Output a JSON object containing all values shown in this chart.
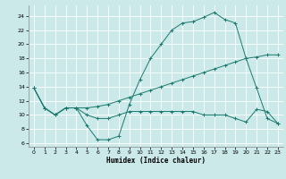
{
  "xlabel": "Humidex (Indice chaleur)",
  "xlim": [
    -0.5,
    23.5
  ],
  "ylim": [
    5.5,
    25.5
  ],
  "xticks": [
    0,
    1,
    2,
    3,
    4,
    5,
    6,
    7,
    8,
    9,
    10,
    11,
    12,
    13,
    14,
    15,
    16,
    17,
    18,
    19,
    20,
    21,
    22,
    23
  ],
  "yticks": [
    6,
    8,
    10,
    12,
    14,
    16,
    18,
    20,
    22,
    24
  ],
  "bg_color": "#cce9e9",
  "line_color": "#1a7a6e",
  "grid_color": "#ffffff",
  "line1_x": [
    0,
    1,
    2,
    3,
    4,
    5,
    6,
    7,
    8,
    9,
    10,
    11,
    12,
    13,
    14,
    15,
    16,
    17,
    18,
    19,
    20,
    21,
    22,
    23
  ],
  "line1_y": [
    13.8,
    11.0,
    10.0,
    11.0,
    11.0,
    8.5,
    6.5,
    6.5,
    7.0,
    11.5,
    15.0,
    18.0,
    20.0,
    22.0,
    23.0,
    23.2,
    23.8,
    24.5,
    23.5,
    23.0,
    18.0,
    13.8,
    9.5,
    8.8
  ],
  "line2_x": [
    0,
    1,
    2,
    3,
    4,
    5,
    6,
    7,
    8,
    9,
    10,
    11,
    12,
    13,
    14,
    15,
    16,
    17,
    18,
    19,
    20,
    21,
    22,
    23
  ],
  "line2_y": [
    13.8,
    11.0,
    10.0,
    11.0,
    11.0,
    11.0,
    11.2,
    11.5,
    12.0,
    12.5,
    13.0,
    13.5,
    14.0,
    14.5,
    15.0,
    15.5,
    16.0,
    16.5,
    17.0,
    17.5,
    18.0,
    18.2,
    18.5,
    18.5
  ],
  "line3_x": [
    0,
    1,
    2,
    3,
    4,
    5,
    6,
    7,
    8,
    9,
    10,
    11,
    12,
    13,
    14,
    15,
    16,
    17,
    18,
    19,
    20,
    21,
    22,
    23
  ],
  "line3_y": [
    13.8,
    11.0,
    10.0,
    11.0,
    11.0,
    10.0,
    9.5,
    9.5,
    10.0,
    10.5,
    10.5,
    10.5,
    10.5,
    10.5,
    10.5,
    10.5,
    10.0,
    10.0,
    10.0,
    9.5,
    9.0,
    10.8,
    10.5,
    8.8
  ]
}
